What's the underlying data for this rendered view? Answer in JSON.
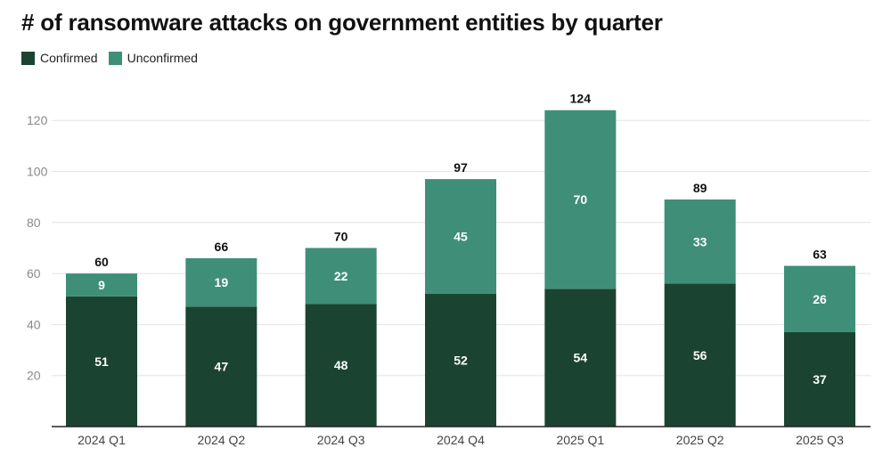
{
  "chart_data": {
    "type": "bar",
    "stacked": true,
    "title": "# of ransomware attacks on government entities by quarter",
    "xlabel": "",
    "ylabel": "",
    "ylim": [
      0,
      130
    ],
    "yticks": [
      20,
      40,
      60,
      80,
      100,
      120
    ],
    "grid": true,
    "legend_position": "top-left",
    "categories": [
      "2024 Q1",
      "2024 Q2",
      "2024 Q3",
      "2024 Q4",
      "2025 Q1",
      "2025 Q2",
      "2025 Q3"
    ],
    "series": [
      {
        "name": "Confirmed",
        "color": "#1b4332",
        "values": [
          51,
          47,
          48,
          52,
          54,
          56,
          37
        ]
      },
      {
        "name": "Unconfirmed",
        "color": "#3f8f78",
        "values": [
          9,
          19,
          22,
          45,
          70,
          33,
          26
        ]
      }
    ],
    "totals": [
      60,
      66,
      70,
      97,
      124,
      89,
      63
    ]
  }
}
